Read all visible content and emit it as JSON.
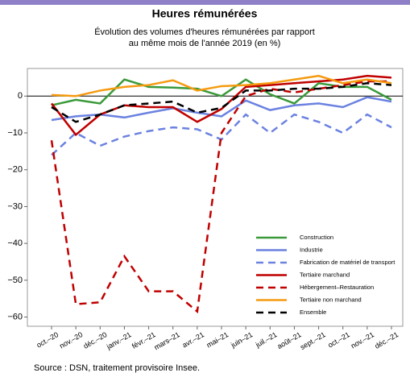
{
  "chart_data": {
    "type": "line",
    "title": "Heures rémunérées",
    "subtitle": [
      "Évolution des volumes d'heures rémunérées par rapport",
      "au même mois de l'année 2019 (en %)"
    ],
    "source": "Source : DSN, traitement provisoire Insee.",
    "categories": [
      "oct.–20",
      "nov.–20",
      "déc.–20",
      "janv.–21",
      "févr.–21",
      "mars–21",
      "avr.–21",
      "mai–21",
      "juin–21",
      "juil.–21",
      "août–21",
      "sept.–21",
      "oct.–21",
      "nov.–21",
      "déc.–21"
    ],
    "ylim": [
      -62.5,
      7.5
    ],
    "yticks": [
      {
        "value": -60,
        "label": "−60"
      },
      {
        "value": -50,
        "label": "−50"
      },
      {
        "value": -40,
        "label": "−40"
      },
      {
        "value": -30,
        "label": "−30"
      },
      {
        "value": -20,
        "label": "−20"
      },
      {
        "value": -10,
        "label": "−10"
      },
      0
    ],
    "zero_line": true,
    "legend": "bottom-right",
    "series": [
      {
        "name": "Construction",
        "color": "#3a9a3a",
        "dash": false,
        "values": [
          -2.5,
          -1,
          -2,
          4.5,
          2.5,
          2.3,
          2,
          0,
          4.5,
          0.5,
          -2,
          3.5,
          2.5,
          2.5,
          -1
        ]
      },
      {
        "name": "Industrie",
        "color": "#6b82e0",
        "dash": false,
        "values": [
          -6.5,
          -5.5,
          -5,
          -5.8,
          -4.5,
          -3.3,
          -4.5,
          -5.5,
          -1.2,
          -3.8,
          -2.5,
          -2,
          -3,
          -0.3,
          -1.5
        ]
      },
      {
        "name": "Fabrication de matériel de transport",
        "color": "#6b82e0",
        "dash": true,
        "values": [
          -16,
          -10,
          -13.5,
          -11,
          -9.5,
          -8.5,
          -9,
          -11.8,
          -5,
          -10,
          -5,
          -7,
          -10,
          -5,
          -8.5
        ]
      },
      {
        "name": "Tertiaire marchand",
        "color": "#c00000",
        "dash": false,
        "values": [
          -2,
          -10.5,
          -5,
          -2.5,
          -3,
          -3,
          -7,
          -3.5,
          2.5,
          3,
          3.5,
          4,
          4.5,
          5.5,
          5
        ]
      },
      {
        "name": "Hébergement–Restauration",
        "color": "#c00000",
        "dash": true,
        "values": [
          -12,
          -56.5,
          -56,
          -43.5,
          -53,
          -53,
          -58.5,
          -10,
          0,
          2,
          1,
          2,
          3,
          4,
          4
        ]
      },
      {
        "name": "Tertiaire non marchand",
        "color": "#f59a10",
        "dash": false,
        "values": [
          0.3,
          0,
          1.5,
          2.5,
          3,
          4.3,
          1.5,
          2.7,
          3,
          3.5,
          4.5,
          5.5,
          3.5,
          4.5,
          3.5
        ]
      },
      {
        "name": "Ensemble",
        "color": "#000000",
        "dash": true,
        "values": [
          -3,
          -7,
          -5,
          -2.5,
          -2,
          -1.5,
          -4.5,
          -3.2,
          1.5,
          1.5,
          2,
          2,
          2.5,
          3.5,
          3
        ]
      }
    ]
  }
}
